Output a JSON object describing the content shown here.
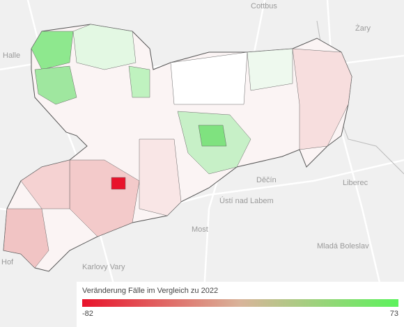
{
  "map": {
    "places": [
      "Cottbus",
      "Żary",
      "Halle",
      "Liberec",
      "Děčín",
      "Ústí nad Labem",
      "Most",
      "Mladá Boleslav",
      "Karlovy Vary",
      "Hof"
    ]
  },
  "legend": {
    "title": "Veränderung Fälle im Vergleich zu 2022",
    "min": -82,
    "max": 73,
    "colors": [
      "#e8132b",
      "#d9b49a",
      "#5cf25c"
    ]
  }
}
